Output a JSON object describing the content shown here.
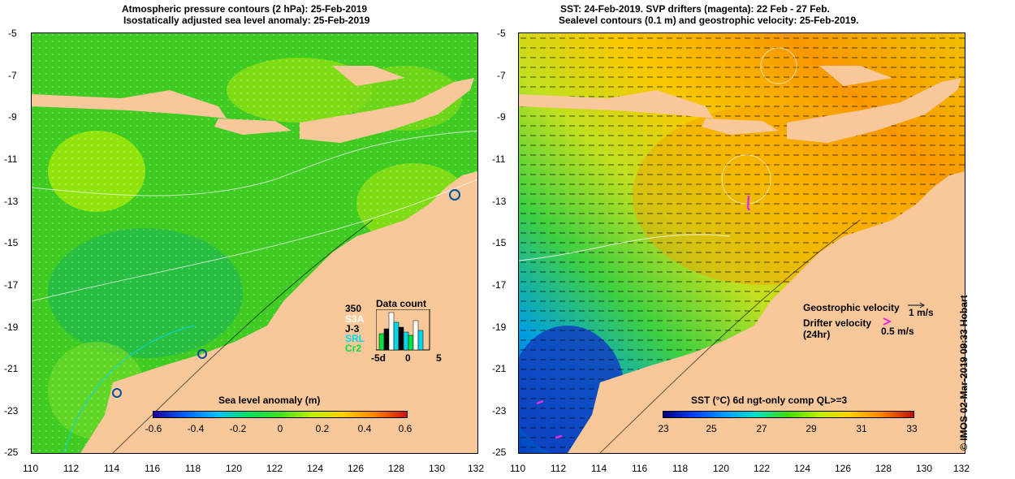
{
  "left_panel": {
    "title_line1": "Atmospheric pressure contours (2 hPa): 25-Feb-2019",
    "title_line2": "Isostatically adjusted sea level anomaly: 25-Feb-2019",
    "colorbar_label": "Sea level anomaly (m)",
    "colorbar_ticks": [
      "-0.6",
      "-0.4",
      "-0.2",
      "0",
      "0.2",
      "0.4",
      "0.6"
    ],
    "data_count": {
      "title": "Data count",
      "max": "350",
      "series": [
        "S3A",
        "J-3",
        "SRL",
        "Cr2"
      ],
      "series_colors": [
        "#ffffff",
        "#000000",
        "#00d8e8",
        "#00e040"
      ],
      "x_ticks": [
        "-5d",
        "0",
        "5"
      ]
    }
  },
  "right_panel": {
    "title_line1": "SST: 24-Feb-2019. SVP drifters (magenta): 22 Feb - 27 Feb.",
    "title_line2": "Sealevel contours (0.1 m) and geostrophic velocity: 25-Feb-2019.",
    "colorbar_label": "SST (°C) 6d ngt-only comp QL>=3",
    "colorbar_ticks": [
      "23",
      "25",
      "27",
      "29",
      "31",
      "33"
    ],
    "legend": {
      "geostrophic": "Geostrophic velocity",
      "geostrophic_scale": "1 m/s",
      "drifter": "Drifter velocity",
      "drifter_sub": "(24hr)",
      "drifter_scale": "0.5 m/s"
    }
  },
  "axes": {
    "lat_ticks": [
      "-5",
      "-7",
      "-9",
      "-11",
      "-13",
      "-15",
      "-17",
      "-19",
      "-21",
      "-23",
      "-25"
    ],
    "lon_ticks": [
      "110",
      "112",
      "114",
      "116",
      "118",
      "120",
      "122",
      "124",
      "126",
      "128",
      "130",
      "132"
    ]
  },
  "credit": "© IMOS 02-Mar-2019 09:33 Hobart",
  "colors": {
    "land": "#f8c89a",
    "sla_background": "#3ccc1e",
    "drifter": "#e030e0"
  }
}
